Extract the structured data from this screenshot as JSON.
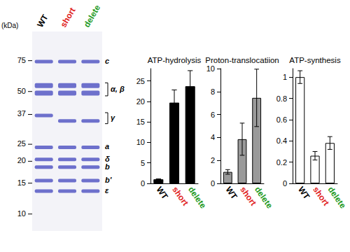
{
  "gel": {
    "axis_title": "(kDa)",
    "lanes": [
      "WT",
      "short",
      "delete"
    ],
    "ylim": [
      110,
      8
    ],
    "markers": [
      75,
      50,
      37,
      25,
      20,
      15,
      10
    ],
    "bands": [
      {
        "label": "c",
        "kda": [
          [
            74
          ],
          [
            74
          ],
          [
            74
          ]
        ]
      },
      {
        "label": "α, β",
        "bracket": true,
        "kda": [
          [
            54,
            49
          ],
          [
            54,
            49
          ],
          [
            54,
            49
          ]
        ]
      },
      {
        "label": "γ",
        "bracket": true,
        "kda": [
          [
            36.5
          ],
          [
            34
          ],
          [
            34
          ]
        ]
      },
      {
        "label": "a",
        "kda": [
          [
            24
          ],
          [
            24
          ],
          [
            24
          ]
        ]
      },
      {
        "label": "δ",
        "kda": [
          [
            20.5
          ],
          [
            20.5
          ],
          [
            20.5
          ]
        ]
      },
      {
        "label": "b",
        "kda": [
          [
            18.5
          ],
          [
            18.5
          ],
          [
            18.5
          ]
        ]
      },
      {
        "label": "b'",
        "kda": [
          [
            15.5
          ],
          [
            15.5
          ],
          [
            15.5
          ]
        ]
      },
      {
        "label": "ε",
        "kda": [
          [
            13.5
          ],
          [
            13.5
          ],
          [
            13.5
          ]
        ]
      }
    ]
  },
  "chart_data": [
    {
      "type": "bar",
      "title": "ATP-hydrolysis",
      "categories": [
        "WT",
        "short",
        "delete"
      ],
      "values": [
        1,
        19.7,
        23.7
      ],
      "errors": [
        0.1,
        3.1,
        3.8
      ],
      "color": "#000000",
      "ylim": [
        0,
        28
      ],
      "yticks": [
        0,
        5,
        10,
        15,
        20,
        25
      ],
      "grid": false
    },
    {
      "type": "bar",
      "title": "Proton-translocatiion",
      "categories": [
        "WT",
        "short",
        "delete"
      ],
      "values": [
        1,
        3.85,
        7.45
      ],
      "errors": [
        0.2,
        1.4,
        2.5
      ],
      "color": "#9a9a9a",
      "ylim": [
        0,
        10
      ],
      "yticks": [
        0,
        2,
        4,
        6,
        8,
        10
      ],
      "grid": false
    },
    {
      "type": "bar",
      "title": "ATP-synthesis",
      "categories": [
        "WT",
        "short",
        "delete"
      ],
      "values": [
        1,
        0.26,
        0.38
      ],
      "errors": [
        0.06,
        0.04,
        0.06
      ],
      "color": "#ffffff",
      "ylim": [
        0,
        1.08
      ],
      "yticks": [
        0,
        0.2,
        0.4,
        0.6,
        0.8,
        1
      ],
      "grid": false
    }
  ]
}
